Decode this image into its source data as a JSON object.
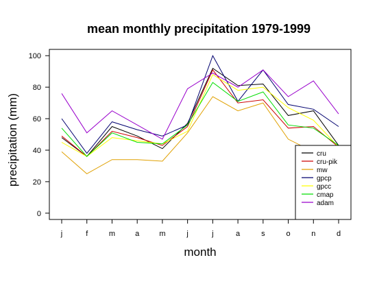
{
  "chart_data": {
    "type": "line",
    "title": "mean monthly precipitation 1979-1999",
    "xlabel": "month",
    "ylabel": "precipitation (mm)",
    "categories": [
      "j",
      "f",
      "m",
      "a",
      "m",
      "j",
      "j",
      "a",
      "s",
      "o",
      "n",
      "d"
    ],
    "yticks": [
      0,
      20,
      40,
      60,
      80,
      100
    ],
    "ylim": [
      -4,
      104
    ],
    "grid": false,
    "legend_position": "bottom-right",
    "series": [
      {
        "name": "cru",
        "color": "#000000",
        "values": [
          48,
          36,
          55,
          49,
          41,
          57,
          92,
          81,
          82,
          62,
          65,
          43
        ]
      },
      {
        "name": "cru-pik",
        "color": "#cc0000",
        "values": [
          49,
          36,
          52,
          48,
          43,
          55,
          91,
          70,
          72,
          54,
          55,
          42
        ]
      },
      {
        "name": "mw",
        "color": "#e0a000",
        "values": [
          39,
          25,
          34,
          34,
          33,
          51,
          74,
          65,
          70,
          47,
          39,
          38
        ]
      },
      {
        "name": "gpcp",
        "color": "#00006e",
        "values": [
          60,
          38,
          58,
          53,
          49,
          56,
          100,
          71,
          91,
          69,
          66,
          55
        ]
      },
      {
        "name": "gpcc",
        "color": "#ffff00",
        "values": [
          45,
          36,
          48,
          46,
          44,
          52,
          88,
          78,
          80,
          67,
          59,
          42
        ]
      },
      {
        "name": "cmap",
        "color": "#00dd00",
        "values": [
          54,
          36,
          51,
          45,
          44,
          56,
          83,
          71,
          77,
          56,
          54,
          43
        ]
      },
      {
        "name": "adam",
        "color": "#9900cc",
        "values": [
          76,
          51,
          65,
          56,
          47,
          79,
          89,
          80,
          91,
          74,
          84,
          63
        ]
      }
    ]
  }
}
